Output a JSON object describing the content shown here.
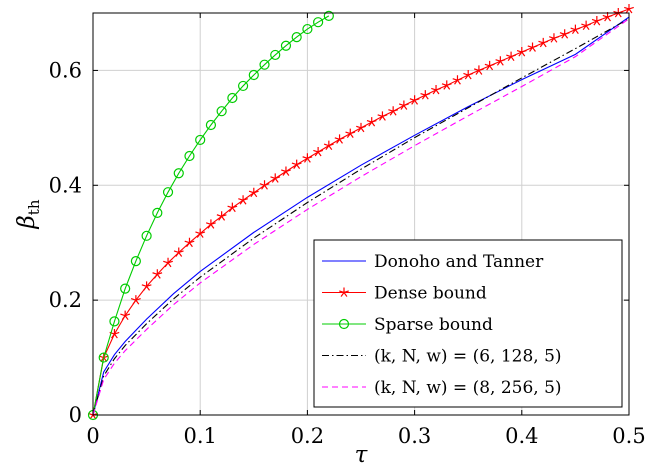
{
  "chart_data": {
    "type": "line",
    "title": "",
    "xlabel": "τ",
    "ylabel": "β",
    "ylabel_subscript": "th",
    "xlim": [
      0,
      0.5
    ],
    "ylim": [
      0,
      0.7
    ],
    "xticks": [
      0,
      0.1,
      0.2,
      0.3,
      0.4,
      0.5
    ],
    "xtick_labels": [
      "0",
      "0.1",
      "0.2",
      "0.3",
      "0.4",
      "0.5"
    ],
    "yticks": [
      0,
      0.2,
      0.4,
      0.6
    ],
    "ytick_labels": [
      "0",
      "0.2",
      "0.4",
      "0.6"
    ],
    "grid": true,
    "legend_position": "bottom-right",
    "series": [
      {
        "name": "Donoho and Tanner",
        "color": "#0000ff",
        "style": "solid",
        "marker": "none",
        "x": [
          0,
          0.01,
          0.02,
          0.03,
          0.05,
          0.075,
          0.1,
          0.15,
          0.2,
          0.25,
          0.3,
          0.35,
          0.4,
          0.45,
          0.5
        ],
        "y": [
          0,
          0.075,
          0.105,
          0.128,
          0.167,
          0.211,
          0.25,
          0.318,
          0.379,
          0.435,
          0.487,
          0.537,
          0.584,
          0.628,
          0.693
        ]
      },
      {
        "name": "Dense bound",
        "color": "#ff0000",
        "style": "solid",
        "marker": "star",
        "x": [
          0,
          0.01,
          0.02,
          0.03,
          0.04,
          0.05,
          0.06,
          0.07,
          0.08,
          0.09,
          0.1,
          0.11,
          0.12,
          0.13,
          0.14,
          0.15,
          0.16,
          0.17,
          0.18,
          0.19,
          0.2,
          0.21,
          0.22,
          0.23,
          0.24,
          0.25,
          0.26,
          0.27,
          0.28,
          0.29,
          0.3,
          0.31,
          0.32,
          0.33,
          0.34,
          0.35,
          0.36,
          0.37,
          0.38,
          0.39,
          0.4,
          0.41,
          0.42,
          0.43,
          0.44,
          0.45,
          0.46,
          0.47,
          0.48,
          0.49,
          0.5
        ],
        "y": [
          0,
          0.1,
          0.141,
          0.173,
          0.2,
          0.224,
          0.245,
          0.265,
          0.283,
          0.3,
          0.316,
          0.332,
          0.346,
          0.361,
          0.374,
          0.387,
          0.4,
          0.412,
          0.424,
          0.436,
          0.447,
          0.458,
          0.469,
          0.48,
          0.49,
          0.5,
          0.51,
          0.52,
          0.529,
          0.539,
          0.548,
          0.557,
          0.566,
          0.574,
          0.583,
          0.592,
          0.6,
          0.608,
          0.616,
          0.624,
          0.632,
          0.64,
          0.648,
          0.656,
          0.663,
          0.671,
          0.678,
          0.686,
          0.693,
          0.7,
          0.707
        ]
      },
      {
        "name": "Sparse bound",
        "color": "#00cc00",
        "style": "solid",
        "marker": "circle",
        "x": [
          0,
          0.01,
          0.02,
          0.03,
          0.04,
          0.05,
          0.06,
          0.07,
          0.08,
          0.09,
          0.1,
          0.11,
          0.12,
          0.13,
          0.14,
          0.15,
          0.16,
          0.17,
          0.18,
          0.19,
          0.2,
          0.21,
          0.22
        ],
        "y": [
          0,
          0.1,
          0.163,
          0.22,
          0.268,
          0.312,
          0.352,
          0.388,
          0.421,
          0.451,
          0.479,
          0.505,
          0.529,
          0.552,
          0.573,
          0.592,
          0.61,
          0.627,
          0.643,
          0.658,
          0.672,
          0.684,
          0.695
        ]
      },
      {
        "name": "(k, N, w) = (6, 128, 5)",
        "color": "#000000",
        "style": "dashdot",
        "marker": "none",
        "x": [
          0,
          0.01,
          0.02,
          0.03,
          0.05,
          0.075,
          0.1,
          0.15,
          0.2,
          0.25,
          0.3,
          0.35,
          0.4,
          0.45,
          0.5
        ],
        "y": [
          0,
          0.068,
          0.098,
          0.121,
          0.159,
          0.202,
          0.24,
          0.308,
          0.37,
          0.428,
          0.483,
          0.535,
          0.587,
          0.638,
          0.69
        ]
      },
      {
        "name": "(k, N, w) = (8, 256, 5)",
        "color": "#ff00ff",
        "style": "dashed",
        "marker": "none",
        "x": [
          0,
          0.01,
          0.02,
          0.03,
          0.05,
          0.075,
          0.1,
          0.15,
          0.2,
          0.25,
          0.3,
          0.35,
          0.4,
          0.45,
          0.5
        ],
        "y": [
          0,
          0.062,
          0.09,
          0.112,
          0.149,
          0.192,
          0.23,
          0.297,
          0.358,
          0.415,
          0.469,
          0.521,
          0.572,
          0.624,
          0.69
        ]
      }
    ]
  }
}
